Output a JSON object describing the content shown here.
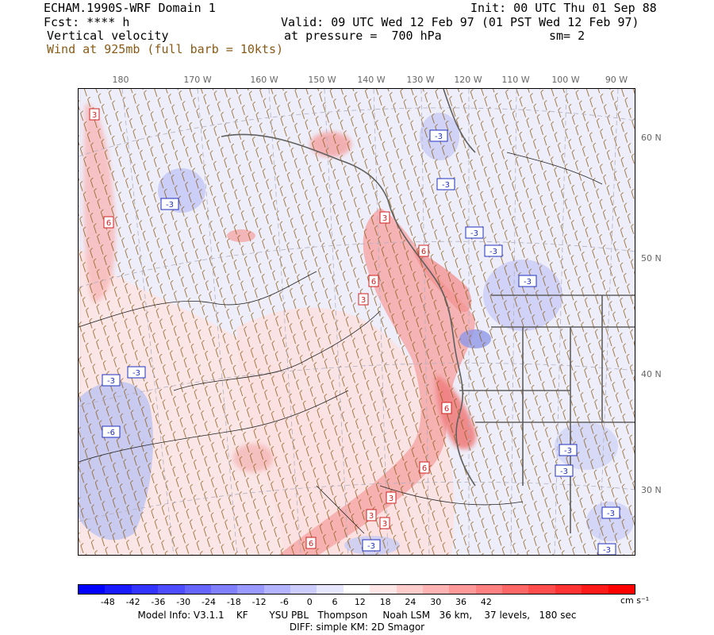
{
  "header": {
    "model": "ECHAM.1990S-WRF Domain 1",
    "init": "Init: 00 UTC Thu 01 Sep 88",
    "fcst": "Fcst: **** h",
    "valid": "Valid: 09 UTC Wed 12 Feb 97 (01 PST Wed 12 Feb 97)",
    "field": "Vertical velocity",
    "pressure": "at pressure =  700 hPa",
    "smoothing": "sm= 2",
    "wind": "Wind at 925mb (full barb = 10kts)"
  },
  "longitude_labels": [
    "180",
    "170 W",
    "160 W",
    "150 W",
    "140 W",
    "130 W",
    "120 W",
    "110 W",
    "100 W",
    "90 W"
  ],
  "latitude_labels": [
    "60 N",
    "50 N",
    "40 N",
    "30 N"
  ],
  "contour_labels": {
    "positive": [
      "3",
      "6",
      "3",
      "6",
      "3",
      "6",
      "3",
      "6",
      "6",
      "3",
      "3",
      "6"
    ],
    "negative": [
      "-3",
      "-3",
      "-3",
      "-3",
      "-3",
      "-3",
      "-3",
      "-3",
      "-6",
      "-3",
      "-3",
      "-3",
      "-3",
      "-3"
    ]
  },
  "colorbar": {
    "ticks": [
      "-48",
      "-42",
      "-36",
      "-30",
      "-24",
      "-18",
      "-12",
      "-6",
      "0",
      "6",
      "12",
      "18",
      "24",
      "30",
      "36",
      "42"
    ],
    "unit": "cm s⁻¹",
    "colors": [
      "#0000ff",
      "#1a1aff",
      "#3333ff",
      "#4d4dff",
      "#6666ff",
      "#8080ff",
      "#9999ff",
      "#b3b3ff",
      "#ccccff",
      "#e6e6ff",
      "#ffffff",
      "#ffe6e6",
      "#ffcccc",
      "#ffb3b3",
      "#ff9999",
      "#ff8080",
      "#ff6666",
      "#ff4d4d",
      "#ff3333",
      "#ff1a1a",
      "#ff0000"
    ]
  },
  "footer": {
    "line1": "Model Info: V3.1.1    KF       YSU PBL   Thompson     Noah LSM   36 km,    37 levels,   180 sec",
    "line2": "DIFF: simple KM: 2D Smagor"
  }
}
